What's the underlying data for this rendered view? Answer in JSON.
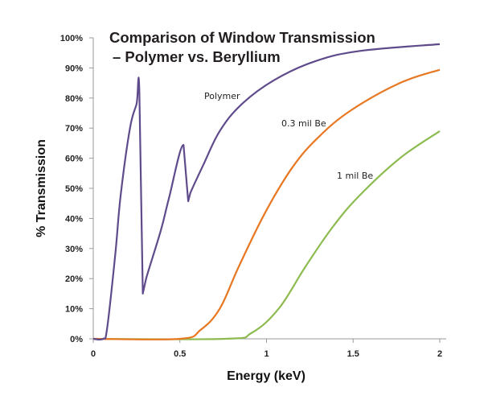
{
  "chart_data": {
    "type": "line",
    "title_lines": [
      "Comparison of Window Transmission",
      "– Polymer vs. Beryllium"
    ],
    "xlabel": "Energy (keV)",
    "ylabel": "% Transmission",
    "xlim": [
      0,
      2
    ],
    "ylim": [
      0,
      100
    ],
    "xticks": [
      0,
      0.5,
      1,
      1.5,
      2
    ],
    "xtick_labels": [
      "0",
      "0.5",
      "1",
      "1.5",
      "2"
    ],
    "yticks": [
      0,
      10,
      20,
      30,
      40,
      50,
      60,
      70,
      80,
      90,
      100
    ],
    "ytick_labels": [
      "0%",
      "10%",
      "20%",
      "30%",
      "40%",
      "50%",
      "60%",
      "70%",
      "80%",
      "90%",
      "100%"
    ],
    "grid": false,
    "legend": "none (inline labels)",
    "series": [
      {
        "name": "Polymer",
        "color": "#5f4b8b",
        "x": [
          0,
          0.057,
          0.08,
          0.127,
          0.158,
          0.212,
          0.25,
          0.266,
          0.286,
          0.305,
          0.39,
          0.436,
          0.521,
          0.548,
          0.56,
          0.637,
          0.73,
          0.854,
          1.04,
          1.27,
          1.535,
          2.0
        ],
        "y": [
          0,
          0,
          3.5,
          28,
          47.6,
          70,
          78,
          82.3,
          15,
          20,
          36,
          46.5,
          64.4,
          45.7,
          48.4,
          58,
          69,
          77.8,
          85.8,
          92,
          95.6,
          97.9
        ]
      },
      {
        "name": "0.3 mil Be",
        "color": "#e87722",
        "x": [
          0,
          0.5,
          0.62,
          0.73,
          0.84,
          0.993,
          1.15,
          1.3,
          1.49,
          1.77,
          2.0
        ],
        "y": [
          0,
          0,
          3,
          10,
          24,
          42,
          57,
          67,
          76,
          85,
          89.4
        ]
      },
      {
        "name": "1 mil Be",
        "color": "#8dbb4f",
        "x": [
          0,
          0.76,
          0.915,
          1.07,
          1.225,
          1.38,
          1.535,
          1.77,
          2.0
        ],
        "y": [
          0,
          0,
          2,
          10,
          24,
          37,
          47.5,
          60,
          69
        ]
      }
    ]
  }
}
